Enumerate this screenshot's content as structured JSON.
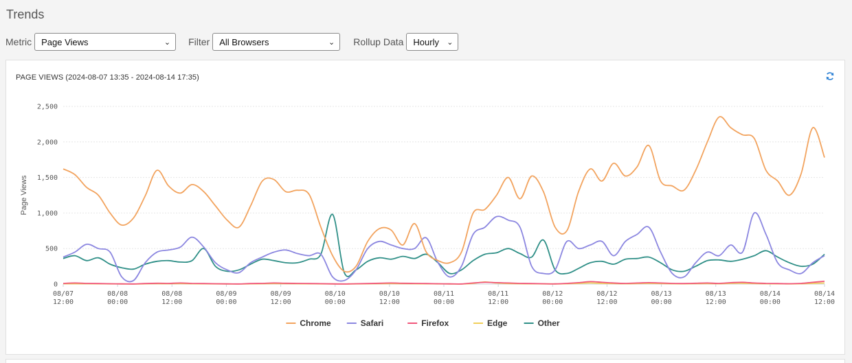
{
  "page": {
    "title": "Trends"
  },
  "controls": {
    "metric": {
      "label": "Metric",
      "value": "Page Views"
    },
    "filter": {
      "label": "Filter",
      "value": "All Browsers"
    },
    "rollup": {
      "label": "Rollup Data",
      "value": "Hourly"
    }
  },
  "panel": {
    "title": "PAGE VIEWS (2024-08-07 13:35 - 2024-08-14 17:35)",
    "refresh_icon": "refresh-icon",
    "accent_color": "#2a7fd4"
  },
  "chart_data": {
    "type": "line",
    "ylabel": "Page Views",
    "ylim": [
      0,
      2500
    ],
    "yticks": [
      {
        "value": 0,
        "label": "0"
      },
      {
        "value": 500,
        "label": "500"
      },
      {
        "value": 1000,
        "label": "1,000"
      },
      {
        "value": 1500,
        "label": "1,500"
      },
      {
        "value": 2000,
        "label": "2,000"
      },
      {
        "value": 2500,
        "label": "2,500"
      }
    ],
    "x_start": "08/07 12:00",
    "x_end": "08/14 12:00",
    "x_step_hours": 4,
    "xticks": [
      {
        "date": "08/07",
        "time": "12:00"
      },
      {
        "date": "08/08",
        "time": "00:00"
      },
      {
        "date": "08/08",
        "time": "12:00"
      },
      {
        "date": "08/09",
        "time": "00:00"
      },
      {
        "date": "08/09",
        "time": "12:00"
      },
      {
        "date": "08/10",
        "time": "00:00"
      },
      {
        "date": "08/10",
        "time": "12:00"
      },
      {
        "date": "08/11",
        "time": "00:00"
      },
      {
        "date": "08/11",
        "time": "12:00"
      },
      {
        "date": "08/12",
        "time": "00:00"
      },
      {
        "date": "08/12",
        "time": "12:00"
      },
      {
        "date": "08/13",
        "time": "00:00"
      },
      {
        "date": "08/13",
        "time": "12:00"
      },
      {
        "date": "08/14",
        "time": "00:00"
      },
      {
        "date": "08/14",
        "time": "12:00"
      }
    ],
    "grid": "horizontal",
    "legend_position": "bottom-center",
    "series": [
      {
        "name": "Chrome",
        "color": "#f2a35e",
        "values": [
          1620,
          1540,
          1360,
          1250,
          1000,
          830,
          930,
          1240,
          1600,
          1380,
          1280,
          1400,
          1300,
          1100,
          900,
          800,
          1100,
          1450,
          1470,
          1300,
          1320,
          1260,
          800,
          400,
          180,
          250,
          600,
          780,
          760,
          550,
          850,
          450,
          330,
          300,
          450,
          1000,
          1050,
          1250,
          1500,
          1200,
          1520,
          1300,
          800,
          750,
          1300,
          1620,
          1450,
          1700,
          1520,
          1650,
          1950,
          1450,
          1380,
          1320,
          1600,
          2000,
          2350,
          2200,
          2100,
          2050,
          1600,
          1450,
          1250,
          1550,
          2200,
          1780
        ]
      },
      {
        "name": "Safari",
        "color": "#8b86e0",
        "values": [
          380,
          450,
          560,
          500,
          450,
          100,
          50,
          300,
          450,
          480,
          520,
          660,
          520,
          300,
          200,
          160,
          300,
          380,
          450,
          480,
          430,
          400,
          420,
          100,
          50,
          200,
          500,
          600,
          550,
          500,
          500,
          650,
          300,
          100,
          250,
          700,
          800,
          950,
          900,
          800,
          250,
          150,
          200,
          600,
          500,
          550,
          600,
          400,
          600,
          700,
          800,
          450,
          150,
          100,
          300,
          450,
          400,
          550,
          450,
          1000,
          700,
          300,
          200,
          150,
          300,
          400
        ]
      },
      {
        "name": "Firefox",
        "color": "#f0557a",
        "values": [
          10,
          15,
          10,
          8,
          5,
          3,
          2,
          8,
          12,
          10,
          15,
          10,
          8,
          5,
          3,
          2,
          8,
          10,
          15,
          12,
          10,
          8,
          6,
          3,
          2,
          5,
          8,
          12,
          15,
          12,
          10,
          8,
          5,
          3,
          2,
          15,
          25,
          20,
          15,
          10,
          8,
          5,
          3,
          10,
          20,
          35,
          25,
          15,
          10,
          15,
          20,
          15,
          10,
          8,
          12,
          15,
          10,
          20,
          25,
          15,
          10,
          8,
          5,
          10,
          25,
          40
        ]
      },
      {
        "name": "Edge",
        "color": "#f0cf5a",
        "values": [
          5,
          5,
          5,
          4,
          3,
          2,
          1,
          4,
          6,
          5,
          8,
          5,
          4,
          3,
          2,
          1,
          4,
          5,
          8,
          6,
          5,
          4,
          3,
          2,
          1,
          3,
          4,
          6,
          8,
          6,
          5,
          4,
          3,
          2,
          1,
          10,
          30,
          15,
          8,
          5,
          4,
          3,
          2,
          5,
          10,
          15,
          10,
          8,
          5,
          8,
          10,
          8,
          5,
          4,
          6,
          8,
          5,
          10,
          12,
          8,
          5,
          4,
          3,
          5,
          10,
          15
        ]
      },
      {
        "name": "Other",
        "color": "#2f8f87",
        "values": [
          360,
          400,
          330,
          370,
          280,
          230,
          210,
          280,
          320,
          330,
          310,
          330,
          500,
          250,
          180,
          200,
          280,
          350,
          330,
          300,
          300,
          350,
          420,
          980,
          160,
          200,
          320,
          370,
          350,
          390,
          360,
          420,
          300,
          150,
          200,
          330,
          420,
          440,
          500,
          430,
          380,
          620,
          200,
          150,
          220,
          300,
          320,
          280,
          350,
          360,
          380,
          300,
          200,
          180,
          250,
          330,
          340,
          320,
          350,
          400,
          470,
          380,
          300,
          250,
          280,
          420
        ]
      }
    ]
  }
}
